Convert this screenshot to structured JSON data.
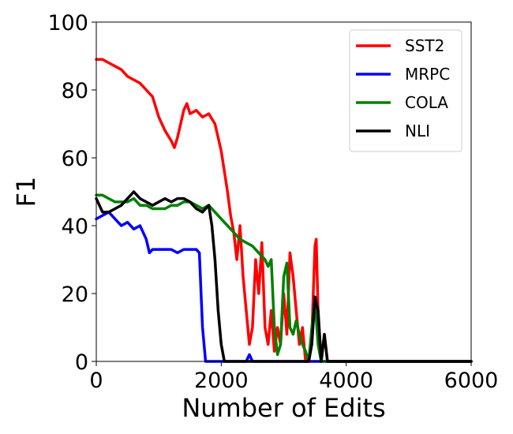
{
  "chart_data": {
    "type": "line",
    "title": "",
    "xlabel": "Number of Edits",
    "ylabel": "F1",
    "xlim": [
      0,
      6000
    ],
    "ylim": [
      0,
      100
    ],
    "xticks": [
      0,
      2000,
      4000,
      6000
    ],
    "yticks": [
      0,
      20,
      40,
      60,
      80,
      100
    ],
    "grid": false,
    "legend_position": "top-right",
    "series": [
      {
        "name": "SST2",
        "color": "#ff0000",
        "x": [
          0,
          100,
          200,
          300,
          400,
          500,
          600,
          700,
          800,
          900,
          1000,
          1100,
          1200,
          1250,
          1300,
          1400,
          1450,
          1500,
          1600,
          1700,
          1800,
          1900,
          2000,
          2100,
          2150,
          2200,
          2250,
          2300,
          2350,
          2400,
          2450,
          2500,
          2550,
          2600,
          2650,
          2700,
          2750,
          2800,
          2850,
          2900,
          2950,
          3000,
          3050,
          3100,
          3150,
          3200,
          3250,
          3300,
          3350,
          3400,
          3450,
          3500,
          3520,
          3550,
          3600,
          3650,
          3700,
          3800,
          4000,
          6000
        ],
        "y": [
          89,
          89,
          88,
          87,
          86,
          84,
          83,
          82,
          80,
          78,
          72,
          68,
          65,
          63,
          66,
          74,
          76,
          73,
          74,
          72,
          73,
          70,
          62,
          50,
          43,
          38,
          30,
          40,
          25,
          15,
          5,
          10,
          30,
          20,
          35,
          10,
          5,
          15,
          3,
          10,
          5,
          20,
          8,
          32,
          25,
          15,
          5,
          10,
          0,
          0,
          8,
          34,
          36,
          15,
          0,
          8,
          0,
          0,
          0,
          0
        ]
      },
      {
        "name": "MRPC",
        "color": "#0000ff",
        "x": [
          0,
          100,
          200,
          300,
          400,
          500,
          600,
          700,
          750,
          800,
          850,
          900,
          1000,
          1100,
          1200,
          1300,
          1400,
          1500,
          1600,
          1650,
          1700,
          1750,
          1800,
          2000,
          2400,
          2450,
          2500,
          2550,
          6000
        ],
        "y": [
          42,
          43,
          44,
          42,
          40,
          41,
          39,
          40,
          38,
          36,
          32,
          33,
          33,
          33,
          33,
          32,
          33,
          33,
          33,
          32,
          10,
          0,
          0,
          0,
          0,
          2,
          0,
          0,
          0
        ]
      },
      {
        "name": "COLA",
        "color": "#008000",
        "x": [
          0,
          100,
          200,
          300,
          400,
          500,
          600,
          700,
          800,
          900,
          1000,
          1100,
          1200,
          1300,
          1400,
          1500,
          1600,
          1700,
          1800,
          1900,
          2000,
          2100,
          2200,
          2300,
          2400,
          2500,
          2600,
          2700,
          2750,
          2800,
          2850,
          2900,
          2950,
          3000,
          3050,
          3100,
          3150,
          3200,
          3250,
          3300,
          3350,
          3400,
          3450,
          3500,
          3550,
          3600,
          6000
        ],
        "y": [
          49,
          49,
          48,
          47,
          47,
          47,
          48,
          46,
          46,
          45,
          45,
          45,
          46,
          46,
          47,
          47,
          46,
          45,
          46,
          44,
          42,
          40,
          38,
          36,
          35,
          34,
          32,
          30,
          28,
          30,
          10,
          2,
          5,
          25,
          29,
          10,
          8,
          12,
          8,
          5,
          3,
          0,
          10,
          18,
          5,
          0,
          0
        ]
      },
      {
        "name": "NLI",
        "color": "#000000",
        "x": [
          0,
          100,
          200,
          300,
          400,
          500,
          600,
          700,
          800,
          900,
          1000,
          1100,
          1200,
          1300,
          1400,
          1500,
          1600,
          1700,
          1750,
          1800,
          1850,
          1900,
          1950,
          2000,
          2050,
          2100,
          2150,
          3400,
          3450,
          3500,
          3550,
          3600,
          3650,
          3700,
          6000
        ],
        "y": [
          48,
          44,
          44,
          45,
          46,
          48,
          50,
          48,
          47,
          46,
          47,
          48,
          47,
          48,
          48,
          47,
          45,
          44,
          45,
          46,
          40,
          30,
          15,
          5,
          0,
          0,
          0,
          0,
          5,
          19,
          15,
          0,
          8,
          0,
          0
        ]
      }
    ]
  }
}
